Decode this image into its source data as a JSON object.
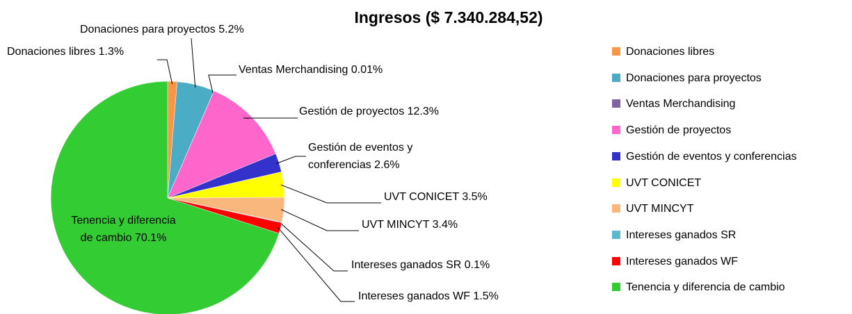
{
  "chart_data": {
    "type": "pie",
    "title": "Ingresos ($ 7.340.284,52)",
    "categories": [
      "Donaciones libres",
      "Donaciones para proyectos",
      "Ventas Merchandising",
      "Gestión de proyectos",
      "Gestión de eventos y conferencias",
      "UVT CONICET",
      "UVT MINCYT",
      "Intereses ganados SR",
      "Intereses ganados WF",
      "Tenencia y diferencia de cambio"
    ],
    "values": [
      1.3,
      5.2,
      0.01,
      12.3,
      2.6,
      3.5,
      3.4,
      0.1,
      1.5,
      70.1
    ],
    "value_labels": [
      "Donaciones libres 1.3%",
      "Donaciones para proyectos 5.2%",
      "Ventas Merchandising 0.01%",
      "Gestión de proyectos 12.3%",
      "Gestión de eventos y conferencias 2.6%",
      "UVT CONICET 3.5%",
      "UVT MINCYT 3.4%",
      "Intereses ganados SR 0.1%",
      "Intereses ganados WF 1.5%",
      "Tenencia y diferencia de cambio 70.1%"
    ],
    "colors": [
      "#f79646",
      "#4bacc6",
      "#8064a2",
      "#ff66cc",
      "#3333cc",
      "#ffff00",
      "#fab77b",
      "#5bb8d0",
      "#ff0000",
      "#33cc33"
    ],
    "legend": "right"
  }
}
